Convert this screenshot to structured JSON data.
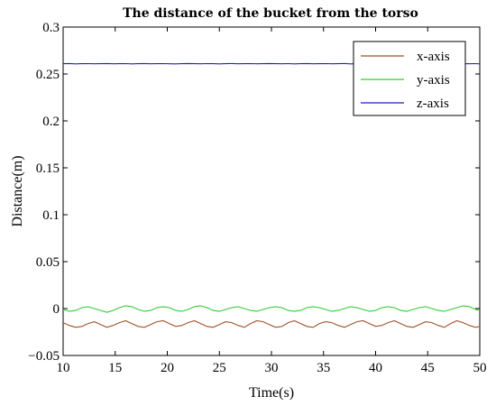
{
  "chart_data": {
    "type": "line",
    "title": "The distance of the bucket from the torso",
    "xlabel": "Time(s)",
    "ylabel": "Distance(m)",
    "xlim": [
      10,
      50
    ],
    "ylim": [
      -0.05,
      0.3
    ],
    "xticks": [
      10,
      15,
      20,
      25,
      30,
      35,
      40,
      45,
      50
    ],
    "yticks": [
      -0.05,
      0,
      0.05,
      0.1,
      0.15,
      0.2,
      0.25,
      0.3
    ],
    "xtick_labels": [
      "10",
      "15",
      "20",
      "25",
      "30",
      "35",
      "40",
      "45",
      "50"
    ],
    "ytick_labels": [
      "−0.05",
      "0",
      "0.05",
      "0.1",
      "0.15",
      "0.2",
      "0.25",
      "0.3"
    ],
    "grid": false,
    "legend_position": "top-right",
    "series": [
      {
        "name": "x-axis",
        "color": "#a0522d",
        "x": [
          10,
          10.6,
          11.2,
          11.8,
          12.4,
          13,
          13.6,
          14.2,
          14.8,
          15.4,
          16,
          16.6,
          17.2,
          17.8,
          18.4,
          19,
          19.6,
          20.2,
          20.8,
          21.4,
          22,
          22.6,
          23.2,
          23.8,
          24.4,
          25,
          25.6,
          26.2,
          26.8,
          27.4,
          28,
          28.6,
          29.2,
          29.8,
          30.4,
          31,
          31.6,
          32.2,
          32.8,
          33.4,
          34,
          34.6,
          35.2,
          35.8,
          36.4,
          37,
          37.6,
          38.2,
          38.8,
          39.4,
          40,
          40.6,
          41.2,
          41.8,
          42.4,
          43,
          43.6,
          44.2,
          44.8,
          45.4,
          46,
          46.6,
          47.2,
          47.8,
          48.4,
          49,
          49.6,
          50
        ],
        "values": [
          -0.015,
          -0.018,
          -0.02,
          -0.019,
          -0.016,
          -0.014,
          -0.017,
          -0.02,
          -0.018,
          -0.015,
          -0.013,
          -0.016,
          -0.019,
          -0.02,
          -0.017,
          -0.014,
          -0.013,
          -0.016,
          -0.019,
          -0.018,
          -0.015,
          -0.013,
          -0.016,
          -0.019,
          -0.02,
          -0.017,
          -0.014,
          -0.015,
          -0.018,
          -0.02,
          -0.016,
          -0.013,
          -0.014,
          -0.017,
          -0.02,
          -0.019,
          -0.015,
          -0.013,
          -0.016,
          -0.019,
          -0.02,
          -0.016,
          -0.014,
          -0.015,
          -0.018,
          -0.02,
          -0.017,
          -0.014,
          -0.013,
          -0.016,
          -0.019,
          -0.018,
          -0.015,
          -0.013,
          -0.016,
          -0.019,
          -0.02,
          -0.017,
          -0.014,
          -0.015,
          -0.018,
          -0.02,
          -0.016,
          -0.013,
          -0.015,
          -0.018,
          -0.02,
          -0.019
        ]
      },
      {
        "name": "y-axis",
        "color": "#33cc33",
        "x": [
          10,
          10.6,
          11.2,
          11.8,
          12.4,
          13,
          13.6,
          14.2,
          14.8,
          15.4,
          16,
          16.6,
          17.2,
          17.8,
          18.4,
          19,
          19.6,
          20.2,
          20.8,
          21.4,
          22,
          22.6,
          23.2,
          23.8,
          24.4,
          25,
          25.6,
          26.2,
          26.8,
          27.4,
          28,
          28.6,
          29.2,
          29.8,
          30.4,
          31,
          31.6,
          32.2,
          32.8,
          33.4,
          34,
          34.6,
          35.2,
          35.8,
          36.4,
          37,
          37.6,
          38.2,
          38.8,
          39.4,
          40,
          40.6,
          41.2,
          41.8,
          42.4,
          43,
          43.6,
          44.2,
          44.8,
          45.4,
          46,
          46.6,
          47.2,
          47.8,
          48.4,
          49,
          49.6,
          50
        ],
        "values": [
          -0.001,
          -0.003,
          -0.002,
          0.001,
          0.002,
          0.0,
          -0.002,
          -0.004,
          -0.002,
          0.001,
          0.003,
          0.002,
          -0.001,
          -0.003,
          -0.002,
          0.001,
          0.002,
          0.001,
          -0.002,
          -0.003,
          -0.001,
          0.002,
          0.003,
          0.001,
          -0.002,
          -0.003,
          -0.001,
          0.001,
          0.002,
          0.0,
          -0.002,
          -0.003,
          -0.001,
          0.001,
          0.002,
          0.001,
          -0.002,
          -0.003,
          -0.002,
          0.001,
          0.002,
          0.001,
          -0.001,
          -0.003,
          -0.002,
          0.0,
          0.002,
          0.001,
          -0.001,
          -0.003,
          -0.002,
          0.001,
          0.002,
          0.001,
          -0.002,
          -0.003,
          -0.001,
          0.001,
          0.002,
          0.0,
          -0.002,
          -0.003,
          -0.001,
          0.001,
          0.003,
          0.002,
          -0.001,
          -0.002
        ]
      },
      {
        "name": "z-axis",
        "color": "#2222bb",
        "x": [
          10,
          10.6,
          11.2,
          11.8,
          12.4,
          13,
          13.6,
          14.2,
          14.8,
          15.4,
          16,
          16.6,
          17.2,
          17.8,
          18.4,
          19,
          19.6,
          20.2,
          20.8,
          21.4,
          22,
          22.6,
          23.2,
          23.8,
          24.4,
          25,
          25.6,
          26.2,
          26.8,
          27.4,
          28,
          28.6,
          29.2,
          29.8,
          30.4,
          31,
          31.6,
          32.2,
          32.8,
          33.4,
          34,
          34.6,
          35.2,
          35.8,
          36.4,
          37,
          37.6,
          38.2,
          38.8,
          39.4,
          40,
          40.6,
          41.2,
          41.8,
          42.4,
          43,
          43.6,
          44.2,
          44.8,
          45.4,
          46,
          46.6,
          47.2,
          47.8,
          48.4,
          49,
          49.6,
          50
        ],
        "values": [
          0.261,
          0.2612,
          0.2608,
          0.261,
          0.2611,
          0.2609,
          0.261,
          0.2612,
          0.2609,
          0.261,
          0.2611,
          0.2608,
          0.261,
          0.2612,
          0.2609,
          0.261,
          0.2611,
          0.2609,
          0.2608,
          0.261,
          0.2612,
          0.261,
          0.2609,
          0.2611,
          0.261,
          0.2608,
          0.261,
          0.2612,
          0.2609,
          0.261,
          0.2611,
          0.2609,
          0.261,
          0.2612,
          0.261,
          0.2609,
          0.2611,
          0.2608,
          0.261,
          0.2612,
          0.2609,
          0.261,
          0.2611,
          0.2609,
          0.261,
          0.2612,
          0.2608,
          0.261,
          0.2611,
          0.2609,
          0.261,
          0.2612,
          0.2609,
          0.261,
          0.2611,
          0.2608,
          0.261,
          0.2612,
          0.2609,
          0.261,
          0.2611,
          0.2609,
          0.261,
          0.2612,
          0.261,
          0.2609,
          0.2611,
          0.2608
        ]
      }
    ]
  }
}
